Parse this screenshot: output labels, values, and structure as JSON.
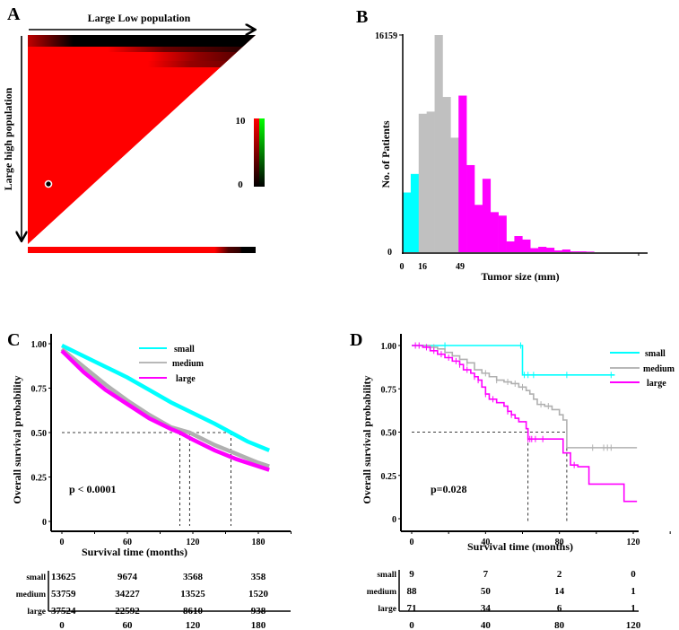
{
  "colors": {
    "small": "#00ffff",
    "medium": "#c0c0c0",
    "large": "#ff00ff",
    "heat_high": "#ff0000",
    "heat_low": "#000000",
    "heat_green": "#00ff00"
  },
  "chart_data": [
    {
      "panel": "A",
      "type": "heatmap",
      "shape": "upper-left triangle",
      "xlabel": "Large Low population",
      "ylabel": "Large high population",
      "colorbar": {
        "min_label": "0",
        "max_label": "10",
        "min": 0,
        "max": 10
      },
      "description": "Mostly saturated red (value ~10) across triangle; dark/black bands (value ~0) along the top rows toward the right; marker circle in lower-left region",
      "marker": {
        "row_fraction": 0.72,
        "col_fraction": 0.09
      },
      "bottom_strip": {
        "red_until_fraction": 0.82,
        "black_from_fraction": 0.93
      }
    },
    {
      "panel": "B",
      "type": "bar",
      "title": "",
      "xlabel": "Tumor size (mm)",
      "ylabel": "No. of Patients",
      "ylim": [
        0,
        16159
      ],
      "ytick_labels": [
        "0",
        "16159"
      ],
      "xtick_labels": [
        "0",
        "16",
        "49"
      ],
      "cutpoints_mm": [
        16,
        49
      ],
      "bin_width_mm": 6.7,
      "bins": [
        {
          "group": "small",
          "value": 4440
        },
        {
          "group": "small",
          "value": 5820
        },
        {
          "group": "medium",
          "value": 10300
        },
        {
          "group": "medium",
          "value": 10460
        },
        {
          "group": "medium",
          "value": 16159
        },
        {
          "group": "medium",
          "value": 11550
        },
        {
          "group": "medium",
          "value": 8520
        },
        {
          "group": "large",
          "value": 11650
        },
        {
          "group": "large",
          "value": 6480
        },
        {
          "group": "large",
          "value": 3520
        },
        {
          "group": "large",
          "value": 5460
        },
        {
          "group": "large",
          "value": 2980
        },
        {
          "group": "large",
          "value": 2720
        },
        {
          "group": "large",
          "value": 800
        },
        {
          "group": "large",
          "value": 1200
        },
        {
          "group": "large",
          "value": 940
        },
        {
          "group": "large",
          "value": 300
        },
        {
          "group": "large",
          "value": 400
        },
        {
          "group": "large",
          "value": 330
        },
        {
          "group": "large",
          "value": 130
        },
        {
          "group": "large",
          "value": 200
        },
        {
          "group": "large",
          "value": 60
        },
        {
          "group": "large",
          "value": 60
        },
        {
          "group": "large",
          "value": 40
        }
      ]
    },
    {
      "panel": "C",
      "type": "line",
      "xlabel": "Survival time (months)",
      "ylabel": "Overall survival probability",
      "xlim": [
        -8,
        212
      ],
      "ylim": [
        0,
        1.0
      ],
      "xticks": [
        0,
        60,
        120,
        180
      ],
      "yticks": [
        0,
        0.25,
        0.5,
        0.75,
        1.0
      ],
      "ytick_labels": [
        "0",
        "0.25",
        "0.50",
        "0.75",
        "1.00"
      ],
      "annotation": "p < 0.0001",
      "median_lines": {
        "y": 0.5,
        "x": [
          108,
          117,
          155
        ]
      },
      "series": [
        {
          "name": "small",
          "x": [
            0,
            20,
            40,
            60,
            80,
            100,
            120,
            140,
            155,
            170,
            190
          ],
          "y": [
            0.99,
            0.93,
            0.87,
            0.81,
            0.74,
            0.67,
            0.61,
            0.55,
            0.5,
            0.45,
            0.4
          ]
        },
        {
          "name": "medium",
          "x": [
            0,
            20,
            40,
            60,
            80,
            100,
            117,
            140,
            160,
            180,
            190
          ],
          "y": [
            0.97,
            0.87,
            0.77,
            0.68,
            0.6,
            0.53,
            0.5,
            0.43,
            0.38,
            0.33,
            0.31
          ]
        },
        {
          "name": "large",
          "x": [
            0,
            20,
            40,
            60,
            80,
            100,
            108,
            120,
            140,
            160,
            180,
            190
          ],
          "y": [
            0.96,
            0.84,
            0.74,
            0.66,
            0.58,
            0.52,
            0.5,
            0.46,
            0.4,
            0.35,
            0.31,
            0.29
          ]
        }
      ],
      "risk_table": {
        "times": [
          "0",
          "60",
          "120",
          "180"
        ],
        "rows": [
          {
            "label": "small",
            "values": [
              "13625",
              "9674",
              "3568",
              "358"
            ]
          },
          {
            "label": "medium",
            "values": [
              "53759",
              "34227",
              "13525",
              "1520"
            ]
          },
          {
            "label": "large",
            "values": [
              "37524",
              "22592",
              "8610",
              "938"
            ]
          }
        ]
      }
    },
    {
      "panel": "D",
      "type": "line",
      "xlabel": "Survival time (months)",
      "ylabel": "Overall survival probability",
      "xlim": [
        -6,
        124
      ],
      "ylim": [
        0,
        1.0
      ],
      "xticks": [
        0,
        40,
        80,
        120
      ],
      "yticks": [
        0,
        0.25,
        0.5,
        0.75,
        1.0
      ],
      "ytick_labels": [
        "0",
        "0.25",
        "0.50",
        "0.75",
        "1.00"
      ],
      "annotation": "p=0.028",
      "median_lines": {
        "y": 0.5,
        "x": [
          63,
          84
        ]
      },
      "series": [
        {
          "name": "small",
          "step": true,
          "x": [
            0,
            60,
            60,
            110
          ],
          "y": [
            1.0,
            1.0,
            0.83,
            0.83
          ],
          "censor_x": [
            18,
            59,
            61,
            63,
            66,
            84,
            108
          ]
        },
        {
          "name": "medium",
          "step": true,
          "x": [
            0,
            10,
            14,
            18,
            22,
            26,
            30,
            34,
            38,
            42,
            46,
            50,
            54,
            58,
            62,
            64,
            66,
            68,
            72,
            76,
            80,
            82,
            84,
            84,
            122
          ],
          "y": [
            1.0,
            0.99,
            0.98,
            0.96,
            0.94,
            0.92,
            0.9,
            0.86,
            0.84,
            0.82,
            0.8,
            0.79,
            0.78,
            0.76,
            0.74,
            0.72,
            0.69,
            0.66,
            0.65,
            0.63,
            0.6,
            0.57,
            0.54,
            0.41,
            0.41
          ],
          "censor_x": [
            12,
            30,
            40,
            46,
            52,
            56,
            60,
            70,
            74,
            98,
            104,
            106,
            108
          ]
        },
        {
          "name": "large",
          "step": true,
          "x": [
            0,
            6,
            10,
            14,
            18,
            22,
            26,
            28,
            32,
            34,
            36,
            38,
            40,
            42,
            46,
            50,
            52,
            54,
            56,
            58,
            62,
            63,
            82,
            86,
            90,
            96,
            115,
            122
          ],
          "y": [
            1.0,
            0.99,
            0.97,
            0.95,
            0.93,
            0.91,
            0.89,
            0.86,
            0.84,
            0.82,
            0.8,
            0.76,
            0.72,
            0.69,
            0.67,
            0.65,
            0.62,
            0.6,
            0.58,
            0.56,
            0.52,
            0.46,
            0.38,
            0.31,
            0.3,
            0.2,
            0.1,
            0.1
          ],
          "censor_x": [
            2,
            4,
            8,
            12,
            16,
            20,
            24,
            26,
            30,
            34,
            36,
            40,
            44,
            52,
            54,
            63,
            64,
            65,
            67,
            71,
            88
          ]
        }
      ],
      "risk_table": {
        "times": [
          "0",
          "40",
          "80",
          "120"
        ],
        "rows": [
          {
            "label": "small",
            "values": [
              "9",
              "7",
              "2",
              "0"
            ]
          },
          {
            "label": "medium",
            "values": [
              "88",
              "50",
              "14",
              "1"
            ]
          },
          {
            "label": "large",
            "values": [
              "71",
              "34",
              "6",
              "1"
            ]
          }
        ]
      }
    }
  ],
  "labels": {
    "panelA": "A",
    "panelB": "B",
    "panelC": "C",
    "panelD": "D"
  }
}
